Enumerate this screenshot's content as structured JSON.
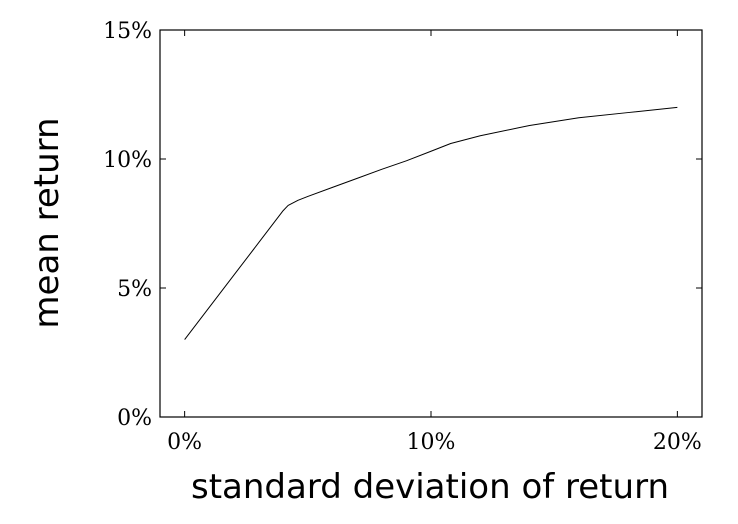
{
  "chart_data": {
    "type": "line",
    "title": "",
    "xlabel": "standard deviation of return",
    "ylabel": "mean return",
    "xlim": [
      -1,
      21
    ],
    "ylim": [
      0,
      15
    ],
    "x_ticks": [
      0,
      10,
      20
    ],
    "x_tick_labels": [
      "0%",
      "10%",
      "20%"
    ],
    "y_ticks": [
      0,
      5,
      10,
      15
    ],
    "y_tick_labels": [
      "0%",
      "5%",
      "10%",
      "15%"
    ],
    "grid": false,
    "legend": "none",
    "line_color": "#000000",
    "series": [
      {
        "x": [
          0,
          1,
          2,
          3,
          4,
          4.2,
          4.6,
          5,
          6,
          7,
          8,
          9,
          10,
          10.8,
          12,
          14,
          16,
          18,
          20
        ],
        "values": [
          3.0,
          4.25,
          5.5,
          6.75,
          8.0,
          8.2,
          8.4,
          8.55,
          8.9,
          9.25,
          9.6,
          9.93,
          10.3,
          10.6,
          10.9,
          11.3,
          11.6,
          11.8,
          12.0
        ]
      }
    ]
  }
}
